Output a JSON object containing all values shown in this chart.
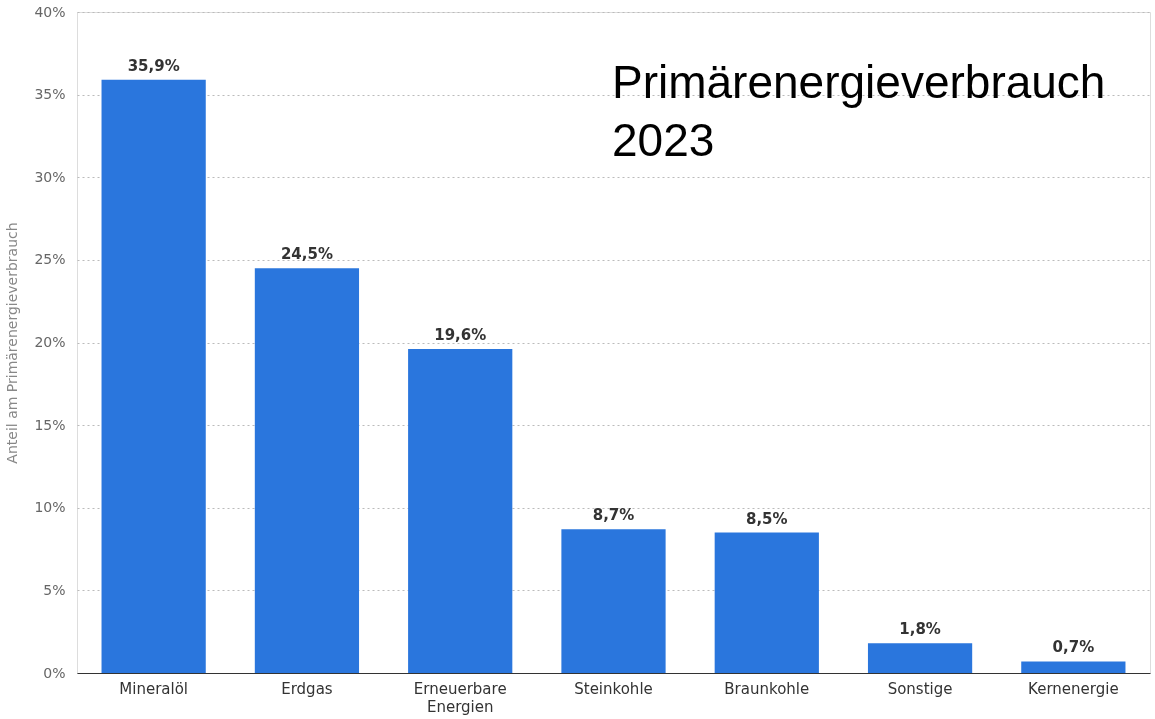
{
  "chart_data": {
    "type": "bar",
    "title": "Primärenergieverbrauch 2023",
    "ylabel": "Anteil am Primärenergieverbrauch",
    "categories": [
      "Mineralöl",
      "Erdgas",
      "Erneuerbare Energien",
      "Steinkohle",
      "Braunkohle",
      "Sonstige",
      "Kernenergie"
    ],
    "values": [
      35.9,
      24.5,
      19.6,
      8.7,
      8.5,
      1.8,
      0.7
    ],
    "value_labels": [
      "35,9%",
      "24,5%",
      "19,6%",
      "8,7%",
      "8,5%",
      "1,8%",
      "0,7%"
    ],
    "color": "#2a76dd",
    "ylim": [
      0,
      40
    ],
    "yticks": [
      {
        "value": 0,
        "label": "0%"
      },
      {
        "value": 5,
        "label": "5%"
      },
      {
        "value": 10,
        "label": "10%"
      },
      {
        "value": 15,
        "label": "15%"
      },
      {
        "value": 20,
        "label": "20%"
      },
      {
        "value": 25,
        "label": "25%"
      },
      {
        "value": 30,
        "label": "30%"
      },
      {
        "value": 35,
        "label": "35%"
      },
      {
        "value": 40,
        "label": "40%"
      }
    ],
    "grid": "y"
  }
}
